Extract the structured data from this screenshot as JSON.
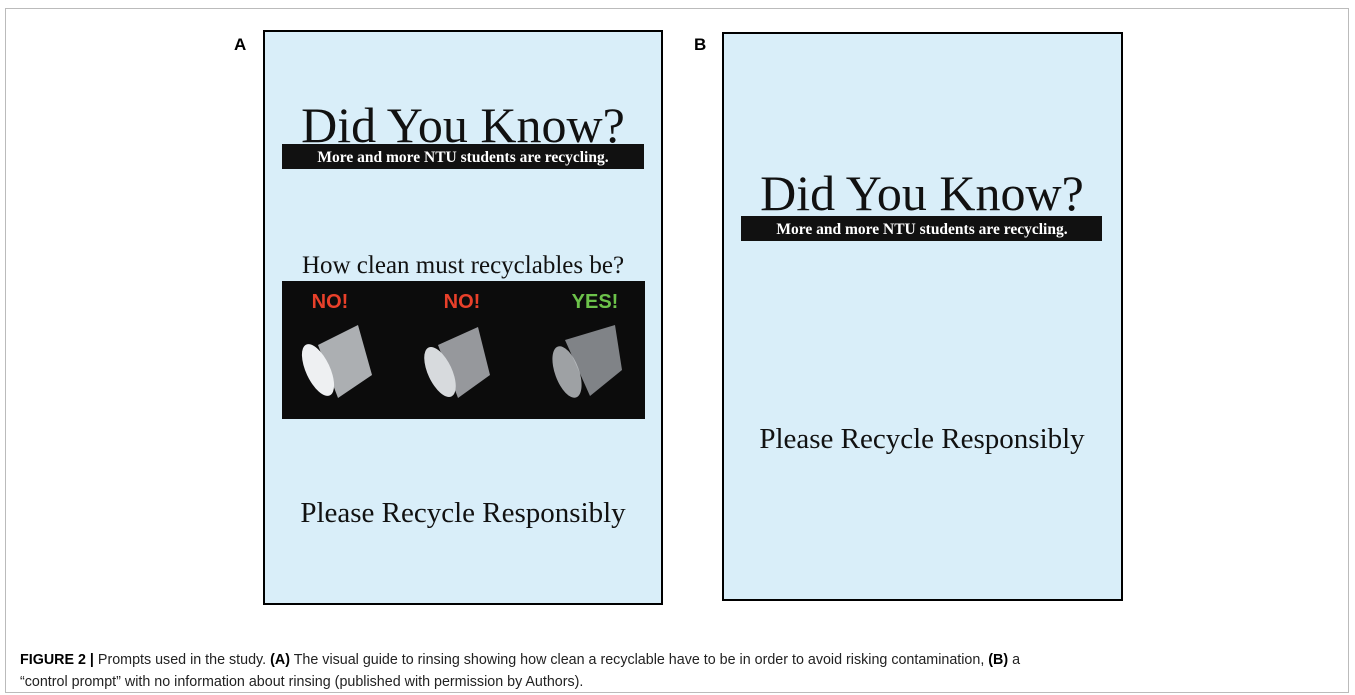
{
  "panels": [
    {
      "label": "A",
      "title": "Did You Know?",
      "subtitle": "More and more NTU students are recycling.",
      "question": "How clean must recyclables be?",
      "image_labels": [
        "NO!",
        "NO!",
        "YES!"
      ],
      "footer": "Please Recycle Responsibly"
    },
    {
      "label": "B",
      "title": "Did You Know?",
      "subtitle": "More and more NTU students are recycling.",
      "footer": "Please Recycle Responsibly"
    }
  ],
  "caption": {
    "figure_label": "FIGURE 2 |",
    "lead": "Prompts used in the study.",
    "a_label": "(A)",
    "a_text": "The visual guide to rinsing showing how clean a recyclable have to be in order to avoid risking contamination,",
    "b_label": "(B)",
    "b_text_line1": "a",
    "b_text_line2": "“control prompt” with no information about rinsing (published with permission by Authors)."
  }
}
